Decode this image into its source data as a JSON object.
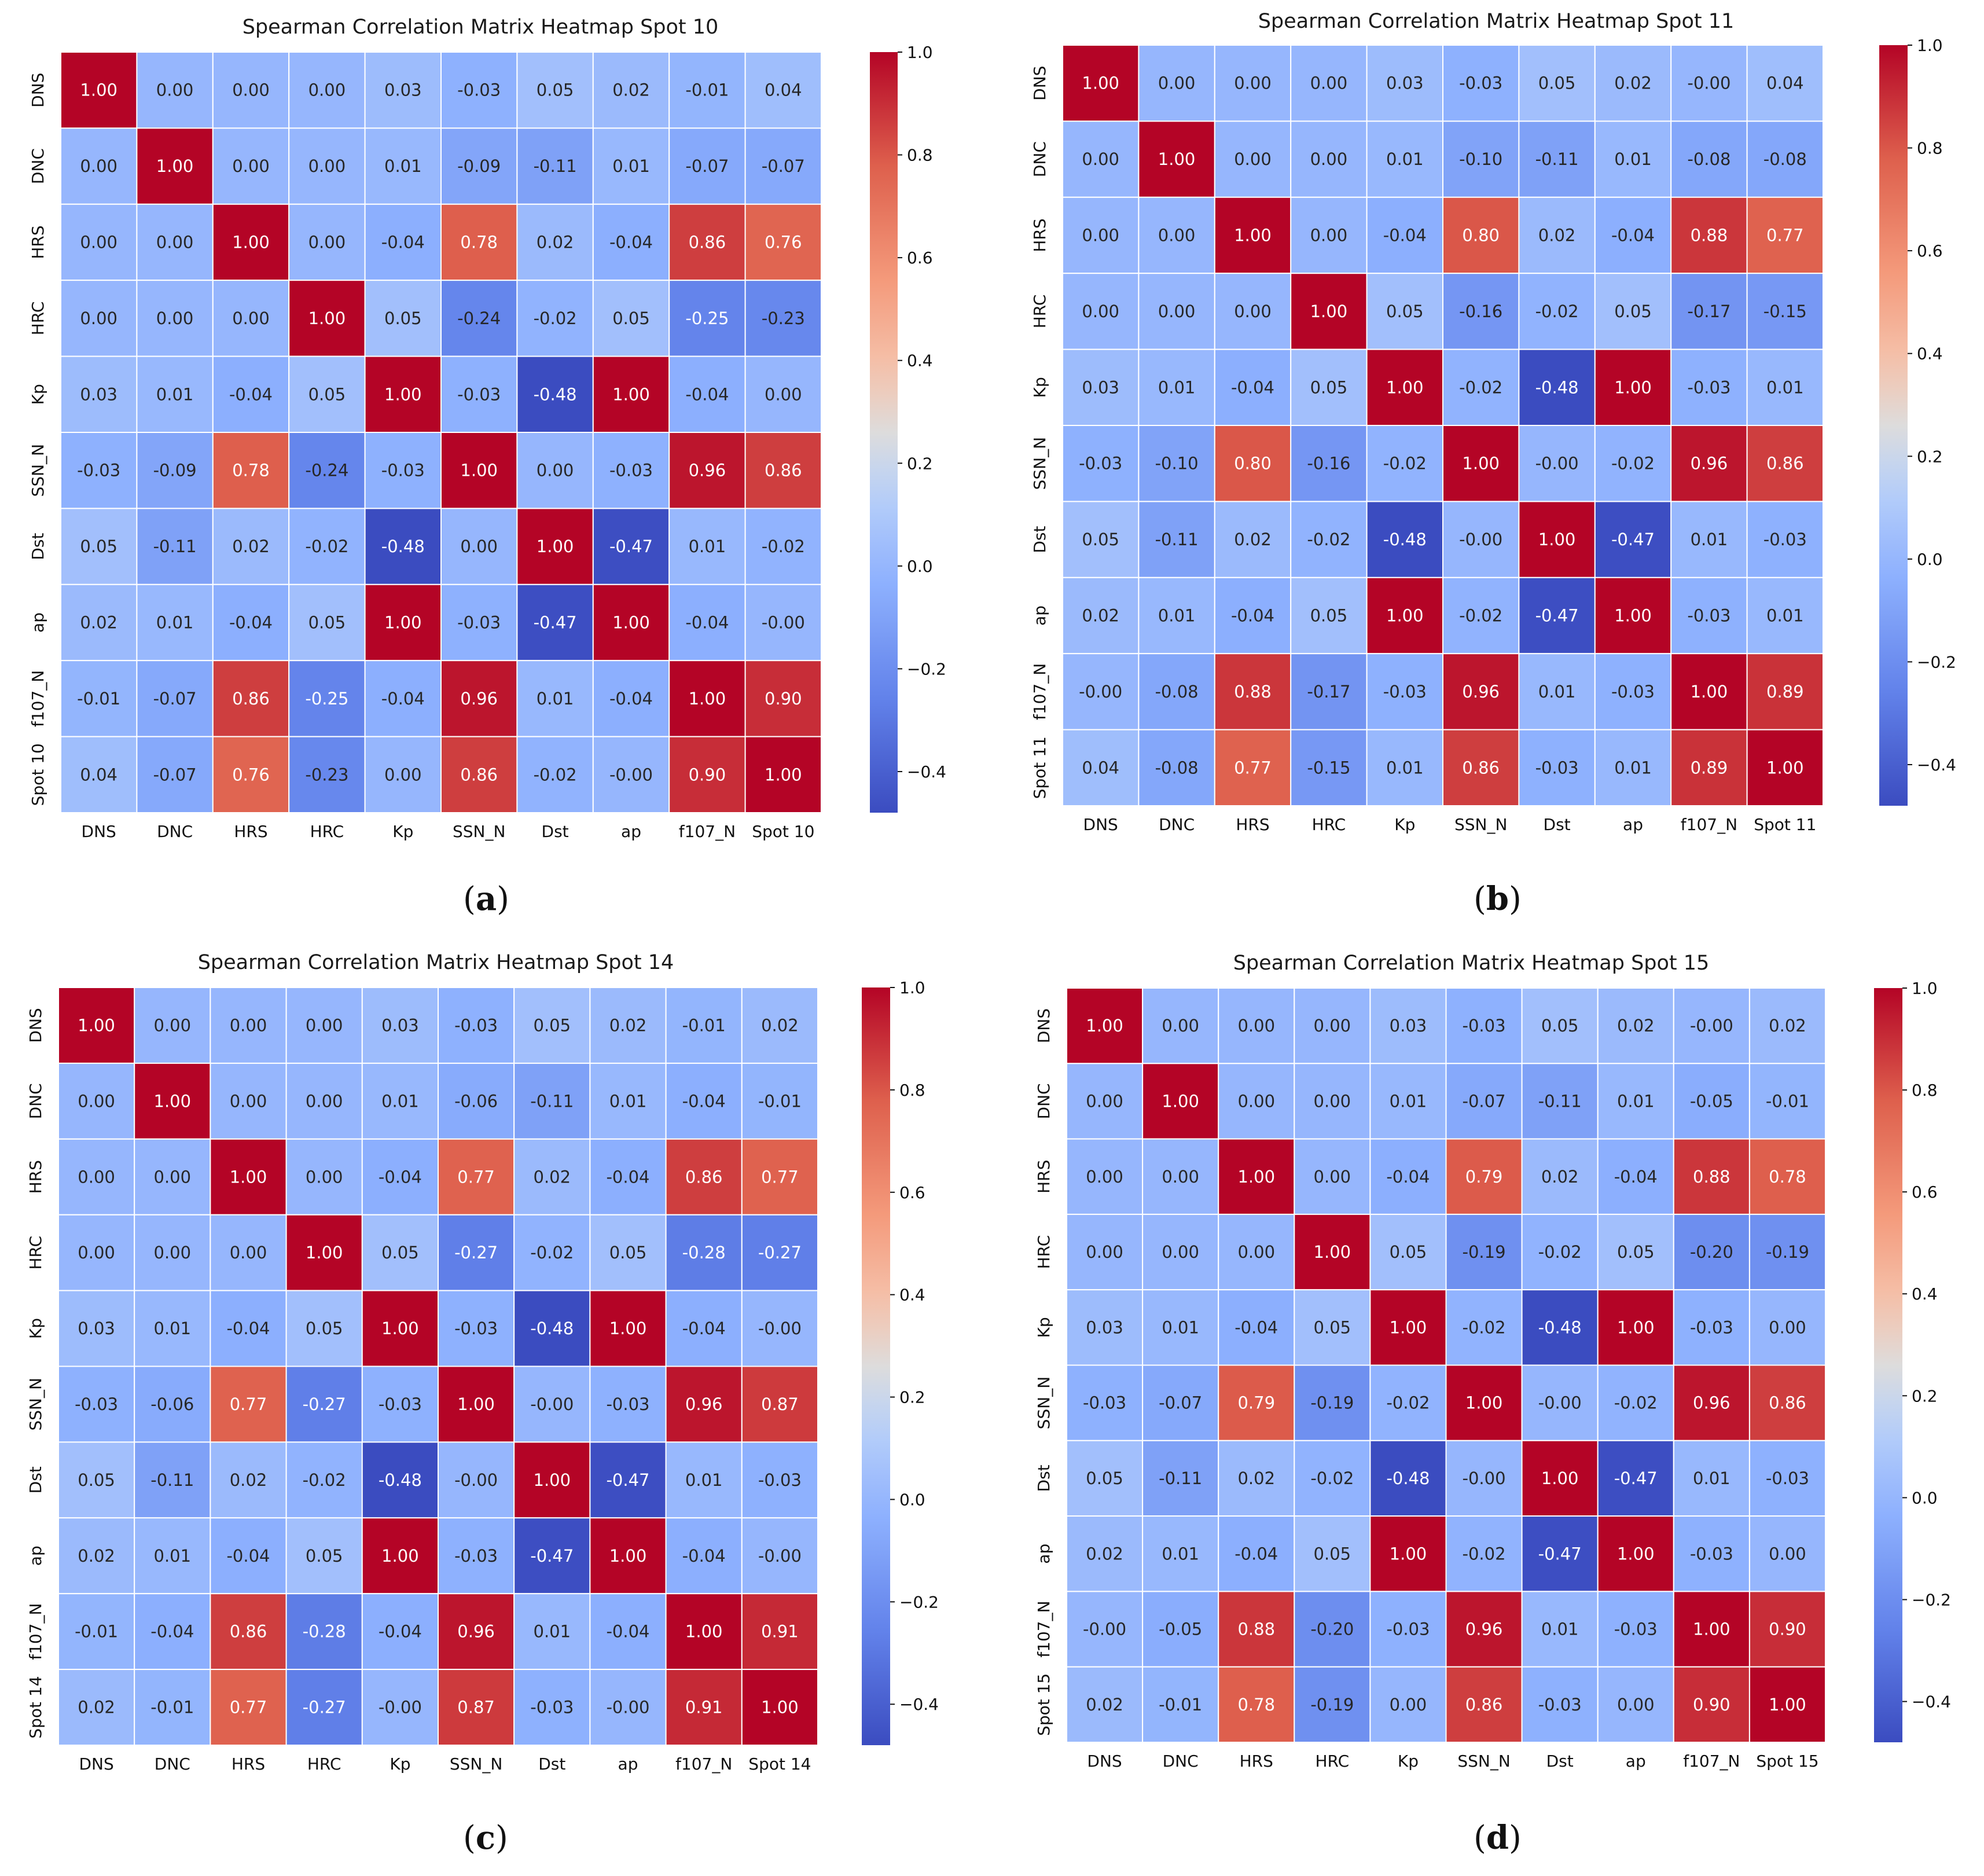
{
  "palette": {
    "neg": "#3b4cc0",
    "mid": "#dddcdc",
    "pos": "#b40426",
    "grid": "#ffffff",
    "text_dark": "#262626",
    "text_light": "#ffffff"
  },
  "colorbar_ticks": [
    "1.0",
    "0.8",
    "0.6",
    "0.4",
    "0.2",
    "0.0",
    "−0.2",
    "−0.4"
  ],
  "captions": [
    "a",
    "b",
    "c",
    "d"
  ],
  "chart_data": [
    {
      "type": "heatmap",
      "title": "Spearman Correlation Matrix Heatmap Spot 10",
      "xlabel": "",
      "ylabel": "",
      "labels": [
        "DNS",
        "DNC",
        "HRS",
        "HRC",
        "Kp",
        "SSN_N",
        "Dst",
        "ap",
        "f107_N",
        "Spot 10"
      ],
      "vmin": -0.48,
      "vmax": 1.0,
      "colorbar_ticks": [
        1.0,
        0.8,
        0.6,
        0.4,
        0.2,
        0.0,
        -0.2,
        -0.4
      ],
      "values": [
        [
          1.0,
          0.0,
          0.0,
          0.0,
          0.03,
          -0.03,
          0.05,
          0.02,
          -0.01,
          0.04
        ],
        [
          0.0,
          1.0,
          0.0,
          0.0,
          0.01,
          -0.09,
          -0.11,
          0.01,
          -0.07,
          -0.07
        ],
        [
          0.0,
          0.0,
          1.0,
          0.0,
          -0.04,
          0.78,
          0.02,
          -0.04,
          0.86,
          0.76
        ],
        [
          0.0,
          0.0,
          0.0,
          1.0,
          0.05,
          -0.24,
          -0.02,
          0.05,
          -0.25,
          -0.23
        ],
        [
          0.03,
          0.01,
          -0.04,
          0.05,
          1.0,
          -0.03,
          -0.48,
          1.0,
          -0.04,
          0.0
        ],
        [
          -0.03,
          -0.09,
          0.78,
          -0.24,
          -0.03,
          1.0,
          0.0,
          -0.03,
          0.96,
          0.86
        ],
        [
          0.05,
          -0.11,
          0.02,
          -0.02,
          -0.48,
          0.0,
          1.0,
          -0.47,
          0.01,
          -0.02
        ],
        [
          0.02,
          0.01,
          -0.04,
          0.05,
          1.0,
          -0.03,
          -0.47,
          1.0,
          -0.04,
          -0.0
        ],
        [
          -0.01,
          -0.07,
          0.86,
          -0.25,
          -0.04,
          0.96,
          0.01,
          -0.04,
          1.0,
          0.9
        ],
        [
          0.04,
          -0.07,
          0.76,
          -0.23,
          0.0,
          0.86,
          -0.02,
          -0.0,
          0.9,
          1.0
        ]
      ]
    },
    {
      "type": "heatmap",
      "title": "Spearman Correlation Matrix Heatmap Spot 11",
      "xlabel": "",
      "ylabel": "",
      "labels": [
        "DNS",
        "DNC",
        "HRS",
        "HRC",
        "Kp",
        "SSN_N",
        "Dst",
        "ap",
        "f107_N",
        "Spot 11"
      ],
      "vmin": -0.48,
      "vmax": 1.0,
      "colorbar_ticks": [
        1.0,
        0.8,
        0.6,
        0.4,
        0.2,
        0.0,
        -0.2,
        -0.4
      ],
      "values": [
        [
          1.0,
          0.0,
          0.0,
          0.0,
          0.03,
          -0.03,
          0.05,
          0.02,
          -0.0,
          0.04
        ],
        [
          0.0,
          1.0,
          0.0,
          0.0,
          0.01,
          -0.1,
          -0.11,
          0.01,
          -0.08,
          -0.08
        ],
        [
          0.0,
          0.0,
          1.0,
          0.0,
          -0.04,
          0.8,
          0.02,
          -0.04,
          0.88,
          0.77
        ],
        [
          0.0,
          0.0,
          0.0,
          1.0,
          0.05,
          -0.16,
          -0.02,
          0.05,
          -0.17,
          -0.15
        ],
        [
          0.03,
          0.01,
          -0.04,
          0.05,
          1.0,
          -0.02,
          -0.48,
          1.0,
          -0.03,
          0.01
        ],
        [
          -0.03,
          -0.1,
          0.8,
          -0.16,
          -0.02,
          1.0,
          -0.0,
          -0.02,
          0.96,
          0.86
        ],
        [
          0.05,
          -0.11,
          0.02,
          -0.02,
          -0.48,
          -0.0,
          1.0,
          -0.47,
          0.01,
          -0.03
        ],
        [
          0.02,
          0.01,
          -0.04,
          0.05,
          1.0,
          -0.02,
          -0.47,
          1.0,
          -0.03,
          0.01
        ],
        [
          -0.0,
          -0.08,
          0.88,
          -0.17,
          -0.03,
          0.96,
          0.01,
          -0.03,
          1.0,
          0.89
        ],
        [
          0.04,
          -0.08,
          0.77,
          -0.15,
          0.01,
          0.86,
          -0.03,
          0.01,
          0.89,
          1.0
        ]
      ]
    },
    {
      "type": "heatmap",
      "title": "Spearman Correlation Matrix Heatmap Spot 14",
      "xlabel": "",
      "ylabel": "",
      "labels": [
        "DNS",
        "DNC",
        "HRS",
        "HRC",
        "Kp",
        "SSN_N",
        "Dst",
        "ap",
        "f107_N",
        "Spot 14"
      ],
      "vmin": -0.48,
      "vmax": 1.0,
      "colorbar_ticks": [
        1.0,
        0.8,
        0.6,
        0.4,
        0.2,
        0.0,
        -0.2,
        -0.4
      ],
      "values": [
        [
          1.0,
          0.0,
          0.0,
          0.0,
          0.03,
          -0.03,
          0.05,
          0.02,
          -0.01,
          0.02
        ],
        [
          0.0,
          1.0,
          0.0,
          0.0,
          0.01,
          -0.06,
          -0.11,
          0.01,
          -0.04,
          -0.01
        ],
        [
          0.0,
          0.0,
          1.0,
          0.0,
          -0.04,
          0.77,
          0.02,
          -0.04,
          0.86,
          0.77
        ],
        [
          0.0,
          0.0,
          0.0,
          1.0,
          0.05,
          -0.27,
          -0.02,
          0.05,
          -0.28,
          -0.27
        ],
        [
          0.03,
          0.01,
          -0.04,
          0.05,
          1.0,
          -0.03,
          -0.48,
          1.0,
          -0.04,
          -0.0
        ],
        [
          -0.03,
          -0.06,
          0.77,
          -0.27,
          -0.03,
          1.0,
          -0.0,
          -0.03,
          0.96,
          0.87
        ],
        [
          0.05,
          -0.11,
          0.02,
          -0.02,
          -0.48,
          -0.0,
          1.0,
          -0.47,
          0.01,
          -0.03
        ],
        [
          0.02,
          0.01,
          -0.04,
          0.05,
          1.0,
          -0.03,
          -0.47,
          1.0,
          -0.04,
          -0.0
        ],
        [
          -0.01,
          -0.04,
          0.86,
          -0.28,
          -0.04,
          0.96,
          0.01,
          -0.04,
          1.0,
          0.91
        ],
        [
          0.02,
          -0.01,
          0.77,
          -0.27,
          -0.0,
          0.87,
          -0.03,
          -0.0,
          0.91,
          1.0
        ]
      ]
    },
    {
      "type": "heatmap",
      "title": "Spearman Correlation Matrix Heatmap Spot 15",
      "xlabel": "",
      "ylabel": "",
      "labels": [
        "DNS",
        "DNC",
        "HRS",
        "HRC",
        "Kp",
        "SSN_N",
        "Dst",
        "ap",
        "f107_N",
        "Spot 15"
      ],
      "vmin": -0.48,
      "vmax": 1.0,
      "colorbar_ticks": [
        1.0,
        0.8,
        0.6,
        0.4,
        0.2,
        0.0,
        -0.2,
        -0.4
      ],
      "values": [
        [
          1.0,
          0.0,
          0.0,
          0.0,
          0.03,
          -0.03,
          0.05,
          0.02,
          -0.0,
          0.02
        ],
        [
          0.0,
          1.0,
          0.0,
          0.0,
          0.01,
          -0.07,
          -0.11,
          0.01,
          -0.05,
          -0.01
        ],
        [
          0.0,
          0.0,
          1.0,
          0.0,
          -0.04,
          0.79,
          0.02,
          -0.04,
          0.88,
          0.78
        ],
        [
          0.0,
          0.0,
          0.0,
          1.0,
          0.05,
          -0.19,
          -0.02,
          0.05,
          -0.2,
          -0.19
        ],
        [
          0.03,
          0.01,
          -0.04,
          0.05,
          1.0,
          -0.02,
          -0.48,
          1.0,
          -0.03,
          0.0
        ],
        [
          -0.03,
          -0.07,
          0.79,
          -0.19,
          -0.02,
          1.0,
          -0.0,
          -0.02,
          0.96,
          0.86
        ],
        [
          0.05,
          -0.11,
          0.02,
          -0.02,
          -0.48,
          -0.0,
          1.0,
          -0.47,
          0.01,
          -0.03
        ],
        [
          0.02,
          0.01,
          -0.04,
          0.05,
          1.0,
          -0.02,
          -0.47,
          1.0,
          -0.03,
          0.0
        ],
        [
          -0.0,
          -0.05,
          0.88,
          -0.2,
          -0.03,
          0.96,
          0.01,
          -0.03,
          1.0,
          0.9
        ],
        [
          0.02,
          -0.01,
          0.78,
          -0.19,
          0.0,
          0.86,
          -0.03,
          0.0,
          0.9,
          1.0
        ]
      ]
    }
  ]
}
